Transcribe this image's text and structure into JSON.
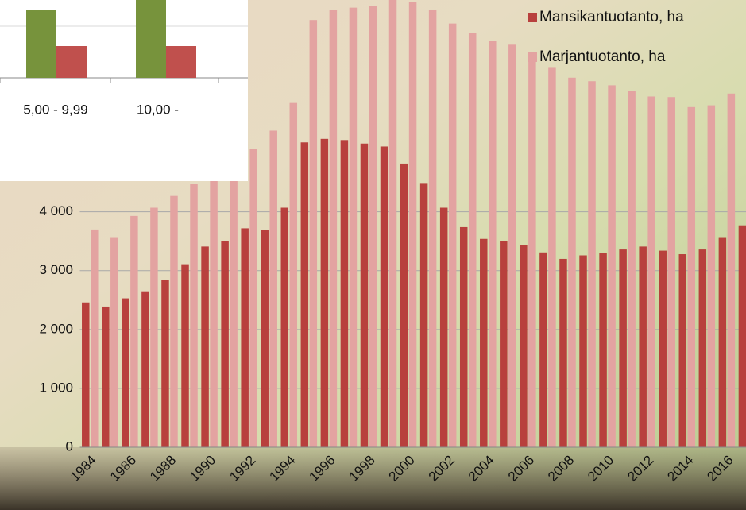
{
  "chart_data": {
    "type": "bar",
    "categories": [
      "1984",
      null,
      "1986",
      null,
      "1988",
      null,
      "1990",
      null,
      "1992",
      null,
      "1994",
      null,
      "1996",
      null,
      "1998",
      null,
      "2000",
      null,
      "2002",
      null,
      "2004",
      null,
      "2006",
      null,
      "2008",
      null,
      "2010",
      null,
      "2012",
      null,
      "2014",
      null,
      "2016",
      null
    ],
    "series": [
      {
        "name": "Mansikantuotanto, ha",
        "color": "#b8403d",
        "values": [
          2460,
          2390,
          2530,
          2650,
          2840,
          3110,
          3410,
          3500,
          3720,
          3690,
          4070,
          5180,
          5240,
          5220,
          5160,
          5110,
          4820,
          4490,
          4070,
          3740,
          3540,
          3500,
          3430,
          3310,
          3200,
          3260,
          3300,
          3360,
          3410,
          3340,
          3280,
          3360,
          3570,
          3770
        ]
      },
      {
        "name": "Marjantuotanto, ha",
        "color": "#e3a3a1",
        "values": [
          3700,
          3570,
          3930,
          4070,
          4270,
          4470,
          4700,
          4900,
          5070,
          5380,
          5850,
          7260,
          7430,
          7470,
          7500,
          7600,
          7570,
          7430,
          7200,
          7040,
          6910,
          6840,
          6590,
          6460,
          6280,
          6220,
          6150,
          6050,
          5960,
          5950,
          5780,
          5810,
          6010,
          null
        ]
      }
    ],
    "ylim": [
      0,
      7600
    ],
    "yticks": [
      0,
      {
        "value": 1000,
        "label": "1 000"
      },
      {
        "value": 2000,
        "label": "2 000"
      },
      {
        "value": 3000,
        "label": "3 000"
      },
      {
        "value": 4000,
        "label": "4 000"
      }
    ],
    "grid": true,
    "legend": "top-right",
    "overlay_labels": [
      "5,00 - 9,99",
      "10,00 -"
    ]
  }
}
